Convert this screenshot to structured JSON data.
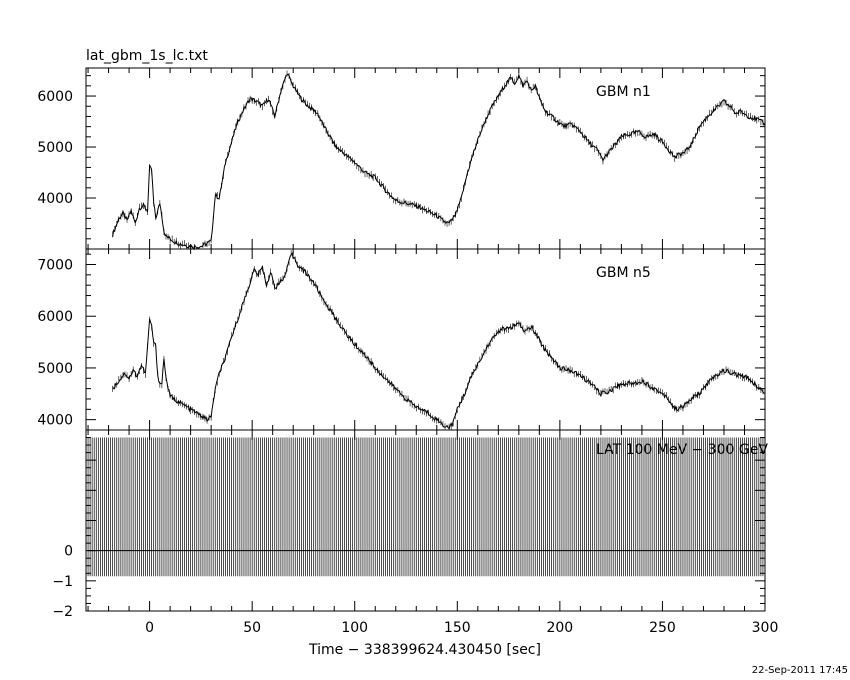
{
  "chart_data": {
    "type": "line",
    "title": "lat_gbm_1s_lc.txt",
    "xlabel": "Time − 338399624.430450 [sec]",
    "timestamp": "22-Sep-2011 17:45",
    "xlim": [
      -31,
      300
    ],
    "xticks": [
      0,
      50,
      100,
      150,
      200,
      250,
      300
    ],
    "xtick_labels": [
      "0",
      "50",
      "100",
      "150",
      "200",
      "250",
      "300"
    ],
    "panels": [
      {
        "name": "GBM n1",
        "ylim": [
          3000,
          6550
        ],
        "yticks": [
          4000,
          5000,
          6000
        ],
        "ytick_labels": [
          "4000",
          "5000",
          "6000"
        ],
        "x": [
          -18,
          -15,
          -13,
          -11,
          -9,
          -7,
          -5,
          -3,
          -1,
          0,
          1,
          2,
          3,
          4,
          5,
          6,
          7,
          8,
          10,
          12,
          15,
          20,
          25,
          30,
          32,
          34,
          37,
          40,
          43,
          46,
          49,
          52,
          55,
          58,
          61,
          64,
          67,
          70,
          73,
          76,
          79,
          82,
          85,
          88,
          91,
          94,
          97,
          100,
          105,
          110,
          115,
          120,
          125,
          130,
          135,
          140,
          143,
          146,
          149,
          152,
          155,
          158,
          161,
          164,
          167,
          170,
          173,
          176,
          178,
          180,
          182,
          184,
          186,
          188,
          190,
          193,
          196,
          199,
          202,
          206,
          210,
          214,
          218,
          221,
          224,
          227,
          230,
          234,
          238,
          242,
          246,
          250,
          254,
          256,
          258,
          261,
          264,
          268,
          272,
          276,
          280,
          284,
          286,
          288,
          292,
          296,
          300
        ],
        "y": [
          3280,
          3600,
          3700,
          3550,
          3750,
          3500,
          3800,
          3850,
          3750,
          4600,
          4550,
          3900,
          3600,
          3750,
          3900,
          3650,
          3350,
          3250,
          3200,
          3150,
          3100,
          3050,
          3050,
          3150,
          4050,
          4000,
          4700,
          5100,
          5500,
          5750,
          5950,
          5900,
          5800,
          5950,
          5600,
          6100,
          6450,
          6200,
          6000,
          5850,
          5750,
          5650,
          5400,
          5200,
          5000,
          4900,
          4800,
          4700,
          4500,
          4400,
          4150,
          3950,
          3900,
          3850,
          3750,
          3650,
          3550,
          3500,
          3650,
          4000,
          4500,
          4900,
          5250,
          5550,
          5800,
          6000,
          6200,
          6350,
          6250,
          6400,
          6200,
          6300,
          6100,
          6200,
          5950,
          5700,
          5600,
          5500,
          5400,
          5450,
          5300,
          5100,
          4950,
          4750,
          4900,
          5050,
          5200,
          5250,
          5300,
          5200,
          5250,
          5100,
          4900,
          4800,
          4850,
          4900,
          5050,
          5400,
          5600,
          5750,
          5900,
          5750,
          5650,
          5700,
          5600,
          5550,
          5450
        ]
      },
      {
        "name": "GBM n5",
        "ylim": [
          3800,
          7300
        ],
        "yticks": [
          4000,
          5000,
          6000,
          7000
        ],
        "ytick_labels": [
          "4000",
          "5000",
          "6000",
          "7000"
        ],
        "x": [
          -18,
          -15,
          -12,
          -10,
          -8,
          -6,
          -4,
          -2,
          -1,
          0,
          1,
          2,
          3,
          4,
          5,
          6,
          7,
          8,
          10,
          14,
          18,
          22,
          26,
          28,
          30,
          32,
          34,
          37,
          40,
          43,
          46,
          49,
          51,
          53,
          55,
          57,
          59,
          61,
          63,
          65,
          67,
          69,
          71,
          73,
          76,
          80,
          85,
          90,
          95,
          100,
          105,
          110,
          115,
          120,
          125,
          130,
          135,
          140,
          143,
          146,
          148,
          150,
          153,
          156,
          159,
          162,
          165,
          168,
          171,
          174,
          177,
          180,
          183,
          186,
          189,
          192,
          196,
          200,
          205,
          210,
          215,
          220,
          224,
          228,
          232,
          236,
          240,
          244,
          248,
          252,
          256,
          260,
          264,
          268,
          272,
          276,
          280,
          284,
          288,
          292,
          296,
          300
        ],
        "y": [
          4600,
          4750,
          4900,
          4800,
          4950,
          4850,
          5050,
          4900,
          5400,
          5950,
          5800,
          5500,
          5400,
          4850,
          4700,
          4700,
          5200,
          4800,
          4450,
          4350,
          4250,
          4150,
          4050,
          4000,
          4050,
          4600,
          4900,
          5200,
          5600,
          5950,
          6300,
          6650,
          6900,
          6800,
          6950,
          6600,
          6850,
          6550,
          6650,
          6700,
          6900,
          7200,
          7100,
          6950,
          6850,
          6650,
          6300,
          6000,
          5700,
          5450,
          5250,
          5000,
          4800,
          4600,
          4400,
          4250,
          4150,
          4000,
          3900,
          3850,
          3950,
          4200,
          4450,
          4750,
          5000,
          5200,
          5450,
          5600,
          5750,
          5750,
          5800,
          5850,
          5700,
          5800,
          5600,
          5400,
          5200,
          5000,
          4950,
          4850,
          4700,
          4500,
          4550,
          4650,
          4700,
          4700,
          4750,
          4650,
          4550,
          4450,
          4200,
          4250,
          4400,
          4500,
          4700,
          4850,
          4950,
          4900,
          4850,
          4800,
          4650,
          4500
        ]
      },
      {
        "name": "LAT 100 MeV − 300 GeV",
        "ylim": [
          -2,
          4
        ],
        "yticks": [
          -2,
          -1,
          0
        ],
        "ytick_labels": [
          "−2",
          "−1",
          "0"
        ],
        "error_bar_extent": [
          -0.85,
          3.75
        ],
        "x_start": -30,
        "x_end": 300,
        "x_step": 1,
        "value": 0
      }
    ]
  }
}
